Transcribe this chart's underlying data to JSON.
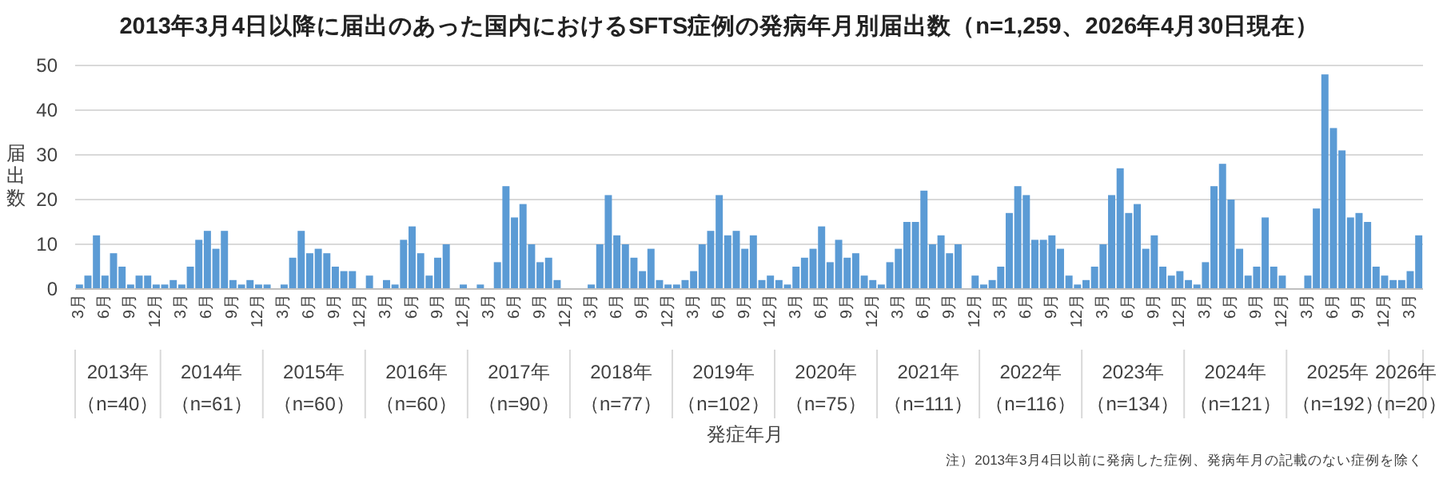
{
  "chart_data": {
    "type": "bar",
    "title": "2013年3月4日以降に届出のあった国内におけるSFTS症例の発病年月別届出数（n=1,259、2026年4月30日現在）",
    "xlabel": "発症年月",
    "ylabel": "届出数",
    "color": "#5b9bd5",
    "grid": "y",
    "ylim": [
      0,
      50
    ],
    "yticks": [
      0,
      10,
      20,
      30,
      40,
      50
    ],
    "x": [
      "2013-03",
      "2013-04",
      "2013-05",
      "2013-06",
      "2013-07",
      "2013-08",
      "2013-09",
      "2013-10",
      "2013-11",
      "2013-12",
      "2014-01",
      "2014-02",
      "2014-03",
      "2014-04",
      "2014-05",
      "2014-06",
      "2014-07",
      "2014-08",
      "2014-09",
      "2014-10",
      "2014-11",
      "2014-12",
      "2015-01",
      "2015-02",
      "2015-03",
      "2015-04",
      "2015-05",
      "2015-06",
      "2015-07",
      "2015-08",
      "2015-09",
      "2015-10",
      "2015-11",
      "2015-12",
      "2016-01",
      "2016-02",
      "2016-03",
      "2016-04",
      "2016-05",
      "2016-06",
      "2016-07",
      "2016-08",
      "2016-09",
      "2016-10",
      "2016-11",
      "2016-12",
      "2017-01",
      "2017-02",
      "2017-03",
      "2017-04",
      "2017-05",
      "2017-06",
      "2017-07",
      "2017-08",
      "2017-09",
      "2017-10",
      "2017-11",
      "2017-12",
      "2018-01",
      "2018-02",
      "2018-03",
      "2018-04",
      "2018-05",
      "2018-06",
      "2018-07",
      "2018-08",
      "2018-09",
      "2018-10",
      "2018-11",
      "2018-12",
      "2019-01",
      "2019-02",
      "2019-03",
      "2019-04",
      "2019-05",
      "2019-06",
      "2019-07",
      "2019-08",
      "2019-09",
      "2019-10",
      "2019-11",
      "2019-12",
      "2020-01",
      "2020-02",
      "2020-03",
      "2020-04",
      "2020-05",
      "2020-06",
      "2020-07",
      "2020-08",
      "2020-09",
      "2020-10",
      "2020-11",
      "2020-12",
      "2021-01",
      "2021-02",
      "2021-03",
      "2021-04",
      "2021-05",
      "2021-06",
      "2021-07",
      "2021-08",
      "2021-09",
      "2021-10",
      "2021-11",
      "2021-12",
      "2022-01",
      "2022-02",
      "2022-03",
      "2022-04",
      "2022-05",
      "2022-06",
      "2022-07",
      "2022-08",
      "2022-09",
      "2022-10",
      "2022-11",
      "2022-12",
      "2023-01",
      "2023-02",
      "2023-03",
      "2023-04",
      "2023-05",
      "2023-06",
      "2023-07",
      "2023-08",
      "2023-09",
      "2023-10",
      "2023-11",
      "2023-12",
      "2024-01",
      "2024-02",
      "2024-03",
      "2024-04",
      "2024-05",
      "2024-06",
      "2024-07",
      "2024-08",
      "2024-09",
      "2024-10",
      "2024-11",
      "2024-12",
      "2025-01",
      "2025-02",
      "2025-03",
      "2025-04",
      "2025-05",
      "2025-06",
      "2025-07",
      "2025-08",
      "2025-09",
      "2025-10",
      "2025-11",
      "2025-12",
      "2026-01",
      "2026-02",
      "2026-03",
      "2026-04"
    ],
    "values": [
      1,
      3,
      12,
      3,
      8,
      5,
      1,
      3,
      3,
      1,
      1,
      2,
      1,
      5,
      11,
      13,
      9,
      13,
      2,
      1,
      2,
      1,
      1,
      0,
      1,
      7,
      13,
      8,
      9,
      8,
      5,
      4,
      4,
      0,
      3,
      0,
      2,
      1,
      11,
      14,
      8,
      3,
      7,
      10,
      0,
      1,
      0,
      1,
      0,
      6,
      23,
      16,
      19,
      10,
      6,
      7,
      2,
      0,
      0,
      0,
      1,
      10,
      21,
      12,
      10,
      7,
      4,
      9,
      2,
      1,
      1,
      2,
      4,
      10,
      13,
      21,
      12,
      13,
      9,
      12,
      2,
      3,
      2,
      1,
      5,
      7,
      9,
      14,
      6,
      11,
      7,
      8,
      3,
      2,
      1,
      6,
      9,
      15,
      15,
      22,
      10,
      12,
      8,
      10,
      0,
      3,
      1,
      2,
      5,
      17,
      23,
      21,
      11,
      11,
      12,
      9,
      3,
      1,
      2,
      5,
      10,
      21,
      27,
      17,
      19,
      9,
      12,
      5,
      3,
      4,
      2,
      1,
      6,
      23,
      28,
      20,
      9,
      3,
      5,
      16,
      5,
      3,
      0,
      0,
      3,
      18,
      48,
      36,
      31,
      16,
      17,
      15,
      5,
      3,
      2,
      2,
      4,
      12
    ],
    "xticks": [
      {
        "value": "2013-03",
        "label": "3月"
      },
      {
        "value": "2013-06",
        "label": "6月"
      },
      {
        "value": "2013-09",
        "label": "9月"
      },
      {
        "value": "2013-12",
        "label": "12月"
      },
      {
        "value": "2014-03",
        "label": "3月"
      },
      {
        "value": "2014-06",
        "label": "6月"
      },
      {
        "value": "2014-09",
        "label": "9月"
      },
      {
        "value": "2014-12",
        "label": "12月"
      },
      {
        "value": "2015-03",
        "label": "3月"
      },
      {
        "value": "2015-06",
        "label": "6月"
      },
      {
        "value": "2015-09",
        "label": "9月"
      },
      {
        "value": "2015-12",
        "label": "12月"
      },
      {
        "value": "2016-03",
        "label": "3月"
      },
      {
        "value": "2016-06",
        "label": "6月"
      },
      {
        "value": "2016-09",
        "label": "9月"
      },
      {
        "value": "2016-12",
        "label": "12月"
      },
      {
        "value": "2017-03",
        "label": "3月"
      },
      {
        "value": "2017-06",
        "label": "6月"
      },
      {
        "value": "2017-09",
        "label": "9月"
      },
      {
        "value": "2017-12",
        "label": "12月"
      },
      {
        "value": "2018-03",
        "label": "3月"
      },
      {
        "value": "2018-06",
        "label": "6月"
      },
      {
        "value": "2018-09",
        "label": "9月"
      },
      {
        "value": "2018-12",
        "label": "12月"
      },
      {
        "value": "2019-03",
        "label": "3月"
      },
      {
        "value": "2019-06",
        "label": "6月"
      },
      {
        "value": "2019-09",
        "label": "9月"
      },
      {
        "value": "2019-12",
        "label": "12月"
      },
      {
        "value": "2020-03",
        "label": "3月"
      },
      {
        "value": "2020-06",
        "label": "6月"
      },
      {
        "value": "2020-09",
        "label": "9月"
      },
      {
        "value": "2020-12",
        "label": "12月"
      },
      {
        "value": "2021-03",
        "label": "3月"
      },
      {
        "value": "2021-06",
        "label": "6月"
      },
      {
        "value": "2021-09",
        "label": "9月"
      },
      {
        "value": "2021-12",
        "label": "12月"
      },
      {
        "value": "2022-03",
        "label": "3月"
      },
      {
        "value": "2022-06",
        "label": "6月"
      },
      {
        "value": "2022-09",
        "label": "9月"
      },
      {
        "value": "2022-12",
        "label": "12月"
      },
      {
        "value": "2023-03",
        "label": "3月"
      },
      {
        "value": "2023-06",
        "label": "6月"
      },
      {
        "value": "2023-09",
        "label": "9月"
      },
      {
        "value": "2023-12",
        "label": "12月"
      },
      {
        "value": "2024-03",
        "label": "3月"
      },
      {
        "value": "2024-06",
        "label": "6月"
      },
      {
        "value": "2024-09",
        "label": "9月"
      },
      {
        "value": "2024-12",
        "label": "12月"
      },
      {
        "value": "2025-03",
        "label": "3月"
      },
      {
        "value": "2025-06",
        "label": "6月"
      },
      {
        "value": "2025-09",
        "label": "9月"
      },
      {
        "value": "2025-12",
        "label": "12月"
      },
      {
        "value": "2026-03",
        "label": "3月"
      }
    ],
    "xlim": [
      "2013-03",
      "2026-04"
    ],
    "annotations": [
      "2013年",
      "（n=40）",
      "2014年",
      "（n=61）",
      "2015年",
      "（n=60）",
      "2016年",
      "（n=60）",
      "2017年",
      "（n=90）",
      "2018年",
      "（n=77）",
      "2019年",
      "（n=102）",
      "2020年",
      "（n=75）",
      "2021年",
      "（n=111）",
      "2022年",
      "（n=116）",
      "2023年",
      "（n=134）",
      "2024年",
      "（n=121）",
      "2025年",
      "（n=192）",
      "2026年",
      "（n=20）",
      "注）2013年3月4日以前に発病した症例、発病年月の記載のない症例を除く"
    ]
  }
}
